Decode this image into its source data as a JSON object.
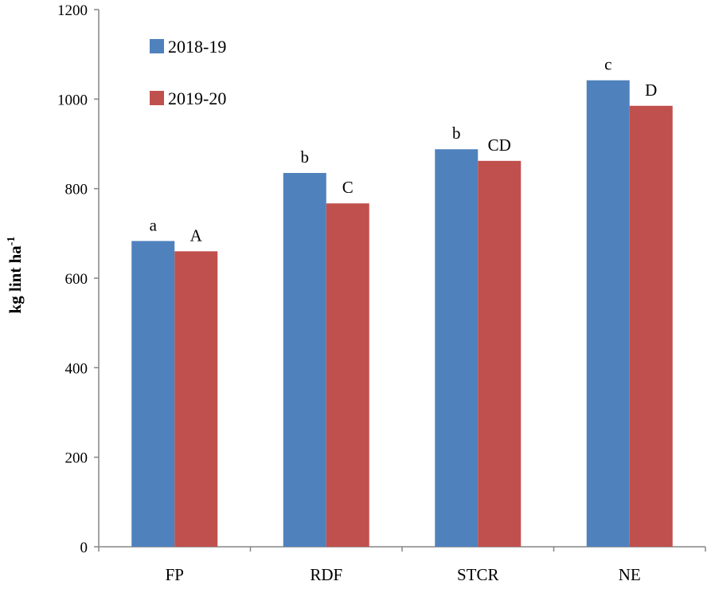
{
  "chart_data": {
    "type": "bar",
    "title": "",
    "xlabel": "",
    "ylabel": "kg lint ha",
    "ylabel_superscript": "-1",
    "ylim": [
      0,
      1200
    ],
    "yticks": [
      0,
      200,
      400,
      600,
      800,
      1000,
      1200
    ],
    "categories": [
      "FP",
      "RDF",
      "STCR",
      "NE"
    ],
    "series": [
      {
        "name": "2018-19",
        "color": "#4f81bd",
        "values": [
          683,
          835,
          888,
          1042
        ],
        "labels": [
          "a",
          "b",
          "b",
          "c"
        ]
      },
      {
        "name": "2019-20",
        "color": "#c0504d",
        "values": [
          660,
          767,
          862,
          985
        ],
        "labels": [
          "A",
          "C",
          "CD",
          "D"
        ]
      }
    ],
    "legend": "top-left",
    "grid": false
  }
}
